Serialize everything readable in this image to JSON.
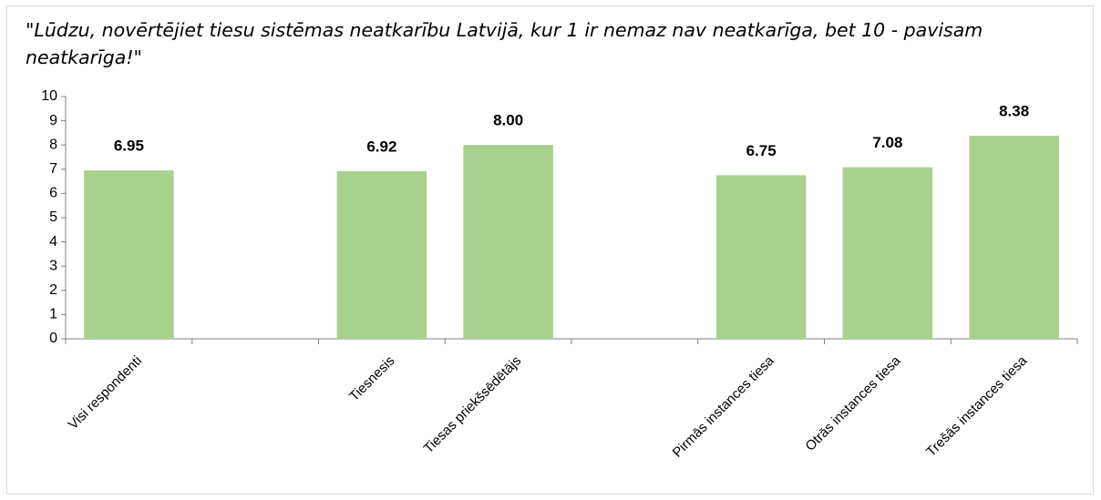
{
  "chart_data": {
    "type": "bar",
    "title": "\"Lūdzu, novērtējiet tiesu sistēmas neatkarību Latvijā, kur 1 ir nemaz nav neatkarīga, bet 10 - pavisam neatkarīga!\"",
    "categories": [
      "Visi respondenti",
      null,
      "Tiesnesis",
      "Tiesas priekšsēdētājs",
      null,
      "Pirmās instances tiesa",
      "Otrās instances tiesa",
      "Trešās instances tiesa"
    ],
    "values": [
      6.95,
      null,
      6.92,
      8.0,
      null,
      6.75,
      7.08,
      8.38
    ],
    "value_labels": [
      "6.95",
      null,
      "6.92",
      "8.00",
      null,
      "6.75",
      "7.08",
      "8.38"
    ],
    "color": "#a9d18e",
    "ylim": [
      0,
      10
    ],
    "yticks": [
      0,
      1,
      2,
      3,
      4,
      5,
      6,
      7,
      8,
      9,
      10
    ],
    "grid": false
  }
}
